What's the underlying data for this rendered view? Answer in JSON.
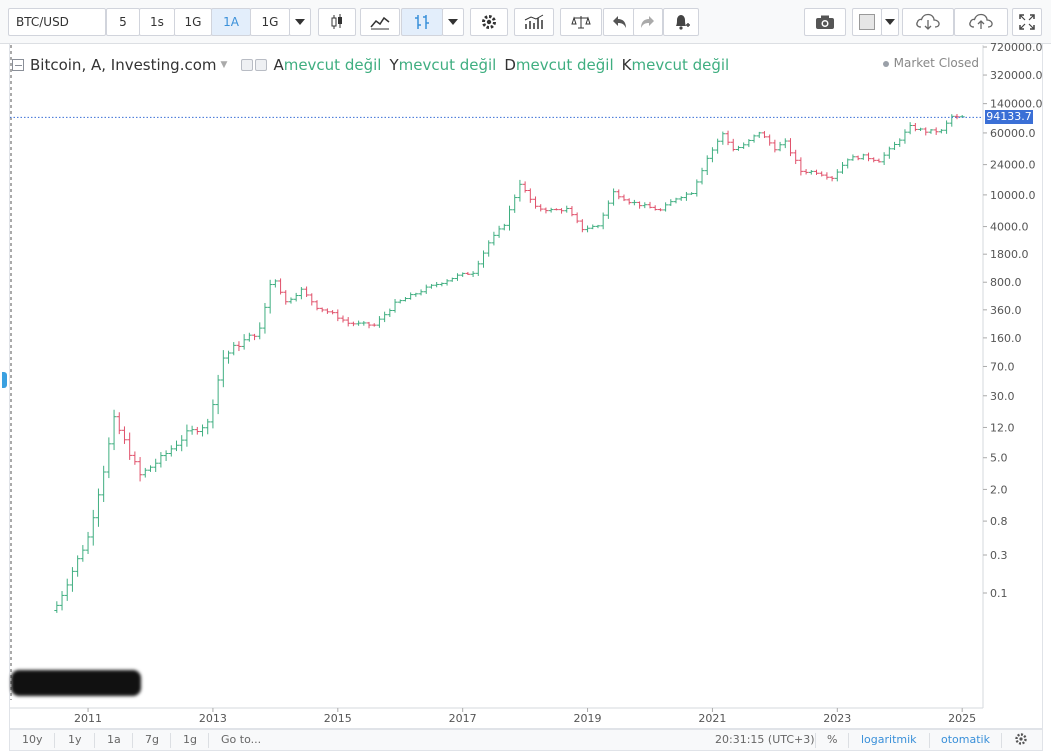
{
  "toolbar": {
    "symbol": "BTC/USD",
    "intervals": [
      "5",
      "1s",
      "1G",
      "1A",
      "1G"
    ],
    "active_interval": "1A",
    "icons": [
      "candles-icon",
      "area-chart-icon",
      "bars-icon",
      "chevron-down-icon",
      "gear-icon",
      "indicators-icon",
      "compare-icon",
      "undo-icon",
      "redo-icon",
      "alert-bell-icon",
      "camera-icon",
      "color-square-icon",
      "chevron-down-icon",
      "cloud-download-icon",
      "cloud-upload-icon",
      "fullscreen-icon"
    ]
  },
  "legend": {
    "title": "Bitcoin, A, Investing.com",
    "open_label": "A",
    "high_label": "Y",
    "low_label": "D",
    "close_label": "K",
    "na_value": "mevcut değil"
  },
  "market_status": "Market Closed",
  "current_price_label": "94133.7",
  "bottom_bar": {
    "ranges": [
      "10y",
      "1y",
      "1a",
      "7g",
      "1g"
    ],
    "goto": "Go to...",
    "time": "20:31:15 (UTC+3)",
    "percent": "%",
    "log": "logaritmik",
    "auto": "otomatik"
  },
  "colors": {
    "up": "#3fae80",
    "down": "#e0506a",
    "accent": "#3a90d9",
    "price_line": "#3a6fd6"
  },
  "chart_data": {
    "type": "ohlc",
    "title": "Bitcoin, A, Investing.com",
    "interval": "monthly",
    "scale": "log",
    "x_tick_labels": [
      "2011",
      "2013",
      "2015",
      "2017",
      "2019",
      "2021",
      "2023",
      "2025"
    ],
    "y_tick_labels": [
      "720000.0",
      "320000.0",
      "140000.0",
      "60000.0",
      "24000.0",
      "10000.0",
      "4000.0",
      "1800.0",
      "800.0",
      "360.0",
      "160.0",
      "70.0",
      "30.0",
      "12.0",
      "5.0",
      "2.0",
      "0.8",
      "0.3",
      "0.1"
    ],
    "last_price": 94133.7,
    "xlim": [
      "2009-10",
      "2025-05"
    ],
    "series_points": [
      [
        "2010-07",
        0.07
      ],
      [
        "2010-10",
        0.19
      ],
      [
        "2011-01",
        0.5
      ],
      [
        "2011-04",
        3.5
      ],
      [
        "2011-06",
        15
      ],
      [
        "2011-08",
        8
      ],
      [
        "2011-11",
        3
      ],
      [
        "2012-03",
        4.9
      ],
      [
        "2012-08",
        10
      ],
      [
        "2012-12",
        13.5
      ],
      [
        "2013-03",
        90
      ],
      [
        "2013-05",
        120
      ],
      [
        "2013-10",
        200
      ],
      [
        "2013-12",
        750
      ],
      [
        "2014-01",
        850
      ],
      [
        "2014-03",
        450
      ],
      [
        "2014-06",
        640
      ],
      [
        "2014-09",
        390
      ],
      [
        "2014-12",
        320
      ],
      [
        "2015-03",
        245
      ],
      [
        "2015-08",
        230
      ],
      [
        "2015-12",
        430
      ],
      [
        "2016-06",
        670
      ],
      [
        "2016-12",
        960
      ],
      [
        "2017-03",
        1070
      ],
      [
        "2017-06",
        2500
      ],
      [
        "2017-09",
        4300
      ],
      [
        "2017-12",
        14000
      ],
      [
        "2018-03",
        6900
      ],
      [
        "2018-06",
        6400
      ],
      [
        "2018-09",
        6600
      ],
      [
        "2018-12",
        3750
      ],
      [
        "2019-03",
        4100
      ],
      [
        "2019-06",
        10800
      ],
      [
        "2019-09",
        8300
      ],
      [
        "2019-12",
        7200
      ],
      [
        "2020-03",
        6400
      ],
      [
        "2020-06",
        9100
      ],
      [
        "2020-09",
        10800
      ],
      [
        "2020-12",
        29000
      ],
      [
        "2021-03",
        58800
      ],
      [
        "2021-05",
        37300
      ],
      [
        "2021-07",
        41500
      ],
      [
        "2021-10",
        61300
      ],
      [
        "2022-01",
        38500
      ],
      [
        "2022-03",
        45500
      ],
      [
        "2022-06",
        19900
      ],
      [
        "2022-09",
        19400
      ],
      [
        "2022-12",
        16500
      ],
      [
        "2023-03",
        28500
      ],
      [
        "2023-06",
        30400
      ],
      [
        "2023-09",
        27000
      ],
      [
        "2023-12",
        42300
      ],
      [
        "2024-03",
        71300
      ],
      [
        "2024-06",
        62700
      ],
      [
        "2024-09",
        63300
      ],
      [
        "2024-11",
        96400
      ],
      [
        "2024-12",
        93500
      ],
      [
        "2025-01",
        94133.7
      ]
    ],
    "grid": false,
    "legend_position": "top-left"
  }
}
